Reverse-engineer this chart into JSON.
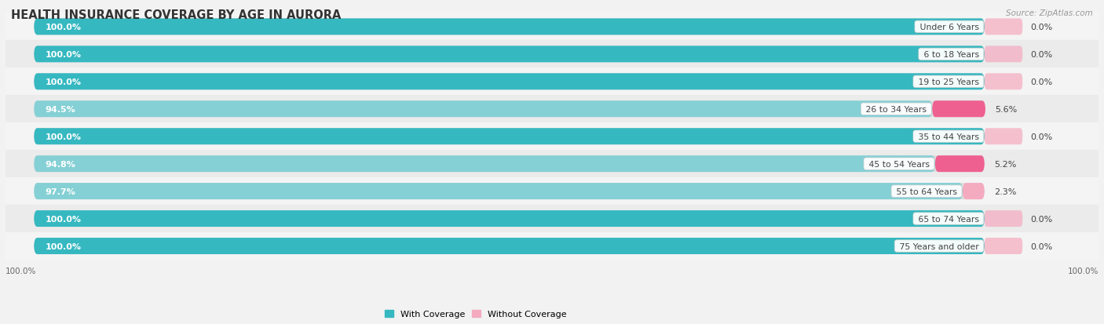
{
  "title": "HEALTH INSURANCE COVERAGE BY AGE IN AURORA",
  "source": "Source: ZipAtlas.com",
  "categories": [
    "Under 6 Years",
    "6 to 18 Years",
    "19 to 25 Years",
    "26 to 34 Years",
    "35 to 44 Years",
    "45 to 54 Years",
    "55 to 64 Years",
    "65 to 74 Years",
    "75 Years and older"
  ],
  "with_coverage": [
    100.0,
    100.0,
    100.0,
    94.5,
    100.0,
    94.8,
    97.7,
    100.0,
    100.0
  ],
  "without_coverage": [
    0.0,
    0.0,
    0.0,
    5.6,
    0.0,
    5.2,
    2.3,
    0.0,
    0.0
  ],
  "color_with_full": "#36B8C0",
  "color_with_partial": "#85D0D5",
  "color_without_small": "#F4AABF",
  "color_without_large": "#EE6090",
  "row_bg_light": "#f4f4f4",
  "row_bg_dark": "#ebebeb",
  "bar_track_color": "#dcdcdc",
  "title_fontsize": 10.5,
  "source_fontsize": 7.5,
  "pct_label_fontsize": 8.0,
  "cat_label_fontsize": 7.8,
  "woc_label_fontsize": 8.0,
  "axis_label_fontsize": 7.5,
  "legend_fontsize": 8.0,
  "total_bar_width": 100,
  "bar_height": 0.6
}
